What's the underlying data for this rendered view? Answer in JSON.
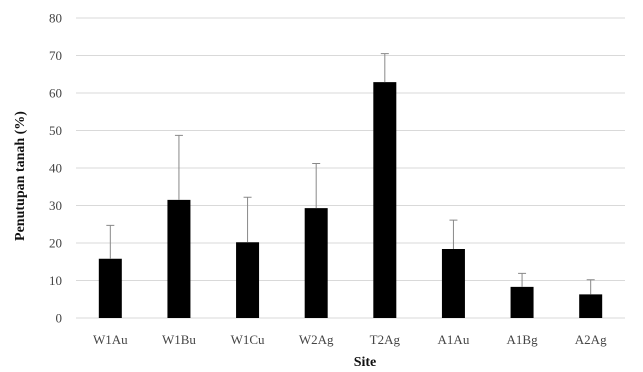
{
  "chart_data": {
    "type": "bar",
    "categories": [
      "W1Au",
      "W1Bu",
      "W1Cu",
      "W2Ag",
      "T2Ag",
      "A1Au",
      "A1Bg",
      "A2Ag"
    ],
    "values": [
      15.8,
      31.5,
      20.2,
      29.3,
      62.9,
      18.4,
      8.3,
      6.3
    ],
    "error_upper": [
      8.9,
      17.2,
      12.0,
      11.9,
      7.6,
      7.7,
      3.6,
      3.9
    ],
    "xlabel": "Site",
    "ylabel": "Penutupan tanah (%)",
    "ylim": [
      0,
      80
    ],
    "yticks": [
      0,
      10,
      20,
      30,
      40,
      50,
      60,
      70,
      80
    ],
    "grid": true,
    "bar_color": "#000000",
    "grid_color": "#d9d9d9",
    "error_color": "#888888"
  }
}
